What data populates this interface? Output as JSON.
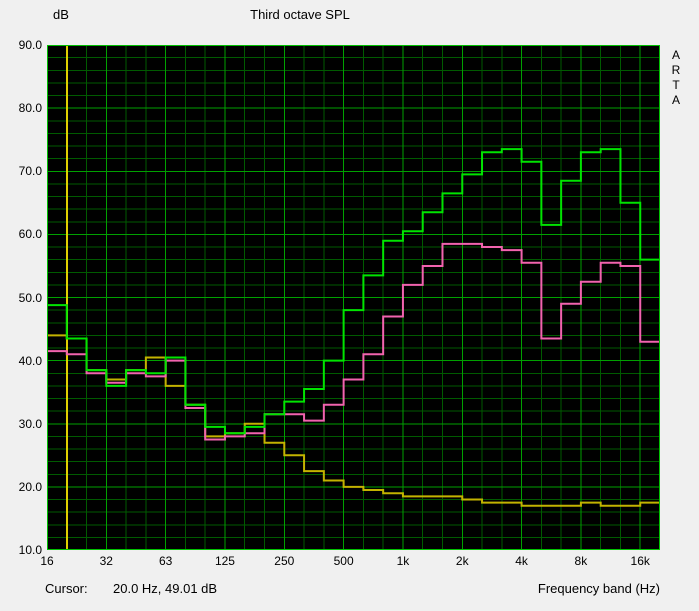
{
  "brand": {
    "letters": [
      "A",
      "R",
      "T",
      "A"
    ]
  },
  "status": {
    "cursor_label": "Cursor:",
    "cursor_value": "20.0 Hz, 49.01 dB"
  },
  "chart_data": {
    "type": "line",
    "subtype": "step-staircase-third-octave",
    "title": "Third octave SPL",
    "ylabel": "dB",
    "xlabel": "Frequency band (Hz)",
    "ylim": [
      10,
      90
    ],
    "grid": true,
    "x_scale": "log-band",
    "categories": [
      16,
      20,
      25,
      31.5,
      40,
      50,
      63,
      80,
      100,
      125,
      160,
      200,
      250,
      315,
      400,
      500,
      630,
      800,
      1000,
      1250,
      1600,
      2000,
      2500,
      3150,
      4000,
      5000,
      6300,
      8000,
      10000,
      12500,
      16000
    ],
    "series": [
      {
        "name": "olive-curve",
        "color": "#c3b300",
        "values": [
          44,
          43.5,
          38.5,
          37,
          38.5,
          40.5,
          36,
          33,
          28,
          28.5,
          30,
          27,
          25,
          22.5,
          21,
          20,
          19.5,
          19,
          18.5,
          18.5,
          18.5,
          18,
          17.5,
          17.5,
          17,
          17,
          17,
          17.5,
          17,
          17,
          17.5
        ]
      },
      {
        "name": "magenta-curve",
        "color": "#f163ae",
        "values": [
          41.5,
          41,
          38,
          36.5,
          38,
          37.5,
          40,
          32.5,
          27.5,
          28,
          28.5,
          31.5,
          31.5,
          30.5,
          33,
          37,
          41,
          47,
          52,
          55,
          58.5,
          58.5,
          58,
          57.5,
          55.5,
          43.5,
          49,
          52.5,
          55.5,
          55,
          43
        ]
      },
      {
        "name": "green-curve",
        "color": "#00e400",
        "values": [
          48.8,
          43.5,
          38.5,
          36,
          38.5,
          38,
          40.5,
          33,
          29.5,
          28.5,
          29.5,
          31.5,
          33.5,
          35.5,
          40,
          48,
          53.5,
          59,
          60.5,
          63.5,
          66.5,
          69.5,
          73,
          73.5,
          71.5,
          61.5,
          68.5,
          73,
          73.5,
          65,
          56
        ]
      }
    ],
    "ytick_values": [
      90,
      80,
      70,
      60,
      50,
      40,
      30,
      20,
      10
    ],
    "ytick_labels": [
      "90.0",
      "80.0",
      "70.0",
      "60.0",
      "50.0",
      "40.0",
      "30.0",
      "20.0",
      "10.0"
    ],
    "xtick_band_indices": [
      0,
      3,
      6,
      9,
      12,
      15,
      18,
      21,
      24,
      27,
      30
    ],
    "xtick_labels": [
      "16",
      "32",
      "63",
      "125",
      "250",
      "500",
      "1k",
      "2k",
      "4k",
      "8k",
      "16k"
    ],
    "cursor": {
      "x_hz": 20.0,
      "y_db": 49.01,
      "band_index": 1,
      "color": "#e0d000"
    },
    "colors": {
      "plot_background": "#000000",
      "grid_minor": "#005a00",
      "grid_major": "#00a000",
      "plot_border": "#00c000",
      "page_background": "#f0f0f0",
      "text": "#000000"
    },
    "legend": "none"
  }
}
